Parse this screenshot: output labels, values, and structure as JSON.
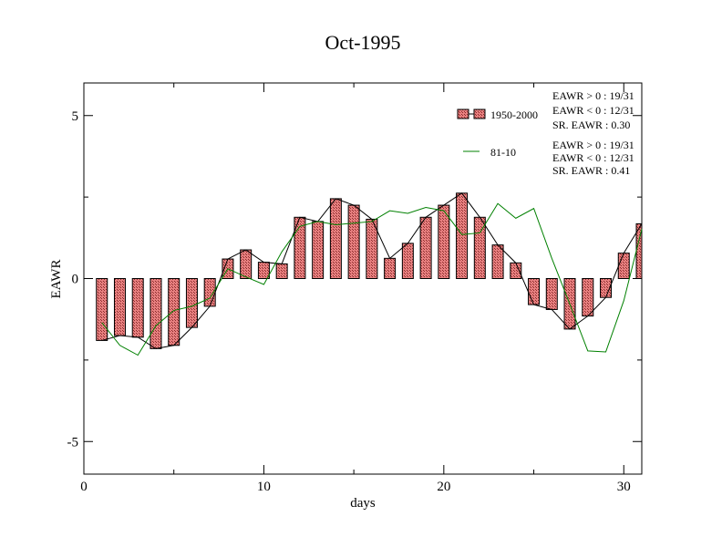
{
  "chart_data": {
    "type": "bar",
    "title": "Oct-1995",
    "xlabel": "days",
    "ylabel": "EAWR",
    "xlim": [
      0,
      31
    ],
    "ylim": [
      -6,
      6
    ],
    "x_ticks": [
      0,
      10,
      20,
      30
    ],
    "y_ticks": [
      -5,
      0,
      5
    ],
    "x_tick_labels": [
      "0",
      "10",
      "20",
      "30"
    ],
    "y_tick_labels": [
      "-5",
      "0",
      "5"
    ],
    "legend_position": "top-right",
    "grid": false,
    "x": [
      1,
      2,
      3,
      4,
      5,
      6,
      7,
      8,
      9,
      10,
      11,
      12,
      13,
      14,
      15,
      16,
      17,
      18,
      19,
      20,
      21,
      22,
      23,
      24,
      25,
      26,
      27,
      28,
      29,
      30,
      31
    ],
    "series": [
      {
        "name": "1950-2000",
        "kind": "bar",
        "color": "#e88080",
        "values": [
          -1.9,
          -1.75,
          -1.8,
          -2.15,
          -2.05,
          -1.5,
          -0.85,
          0.6,
          0.88,
          0.5,
          0.45,
          1.88,
          1.75,
          2.45,
          2.25,
          1.82,
          0.62,
          1.08,
          1.88,
          2.25,
          2.62,
          1.88,
          1.03,
          0.48,
          -0.8,
          -0.95,
          -1.55,
          -1.15,
          -0.58,
          0.78,
          1.68
        ]
      },
      {
        "name": "81-10",
        "kind": "line",
        "color": "#008000",
        "values": [
          -1.35,
          -2.05,
          -2.35,
          -1.45,
          -0.98,
          -0.85,
          -0.6,
          0.3,
          0.05,
          -0.18,
          0.82,
          1.6,
          1.75,
          1.65,
          1.7,
          1.75,
          2.08,
          2.0,
          2.18,
          2.08,
          1.35,
          1.4,
          2.3,
          1.85,
          2.15,
          0.62,
          -0.78,
          -2.22,
          -2.25,
          -0.68,
          1.52
        ]
      }
    ],
    "stats": [
      {
        "pos": "EAWR > 0 : 19/31",
        "neg": "EAWR < 0 : 12/31",
        "sr": "SR. EAWR :  0.30"
      },
      {
        "pos": "EAWR > 0 : 19/31",
        "neg": "EAWR < 0 : 12/31",
        "sr": "SR. EAWR :  0.41"
      }
    ]
  }
}
